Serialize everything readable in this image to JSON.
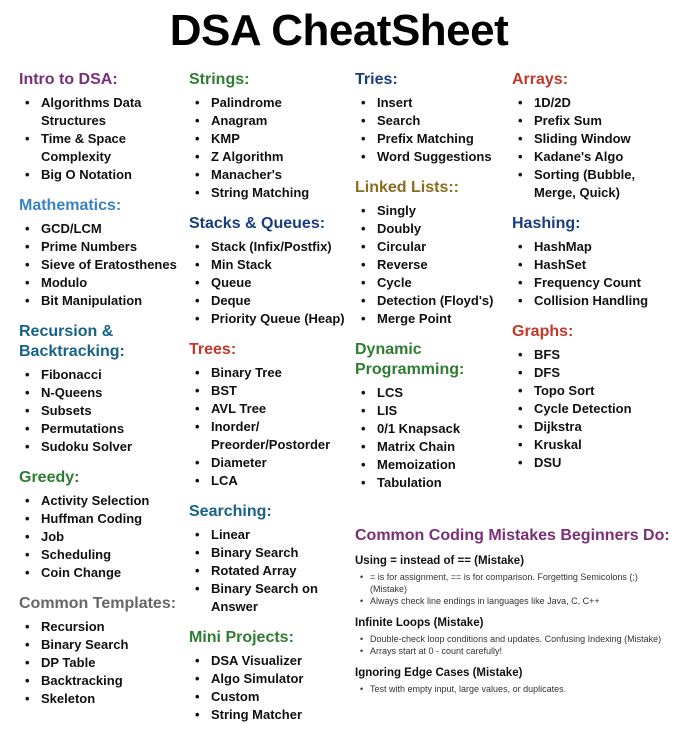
{
  "title": "DSA CheatSheet",
  "columns": [
    {
      "sections": [
        {
          "title": "Intro to DSA:",
          "color": "#7a2e78",
          "items": [
            "Algorithms Data Structures",
            "Time & Space Complexity",
            "Big O Notation"
          ]
        },
        {
          "title": "Mathematics:",
          "color": "#3b82c4",
          "items": [
            "GCD/LCM",
            "Prime Numbers",
            "Sieve of Eratosthenes",
            "Modulo",
            "Bit Manipulation"
          ]
        },
        {
          "title": "Recursion & Backtracking:",
          "color": "#17628a",
          "items": [
            "Fibonacci",
            "N-Queens",
            "Subsets",
            "Permutations",
            "Sudoku Solver"
          ]
        },
        {
          "title": "Greedy:",
          "color": "#2e7d32",
          "items": [
            "Activity Selection",
            "Huffman Coding",
            "Job",
            "Scheduling",
            "Coin Change"
          ]
        },
        {
          "title": "Common Templates:",
          "color": "#666666",
          "items": [
            "Recursion",
            "Binary Search",
            "DP Table",
            "Backtracking",
            "Skeleton"
          ]
        }
      ]
    },
    {
      "sections": [
        {
          "title": "Strings:",
          "color": "#2e7d32",
          "items": [
            "Palindrome",
            "Anagram",
            "KMP",
            "Z Algorithm",
            "Manacher's",
            "String Matching"
          ]
        },
        {
          "title": "Stacks & Queues:",
          "color": "#1a3d80",
          "items": [
            "Stack (Infix/Postfix)",
            "Min Stack",
            "Queue",
            "Deque",
            "Priority Queue (Heap)"
          ]
        },
        {
          "title": "Trees:",
          "color": "#c0392b",
          "items": [
            "Binary Tree",
            "BST",
            "AVL Tree",
            "Inorder/ Preorder/Postorder",
            "Diameter",
            "LCA"
          ]
        },
        {
          "title": "Searching:",
          "color": "#17628a",
          "items": [
            "Linear",
            "Binary Search",
            "Rotated Array",
            "Binary Search on Answer"
          ]
        },
        {
          "title": "Mini Projects:",
          "color": "#2e7d32",
          "items": [
            "DSA Visualizer",
            "Algo Simulator",
            "Custom",
            "String Matcher"
          ]
        }
      ]
    },
    {
      "sections": [
        {
          "title": "Tries:",
          "color": "#1a3d80",
          "items": [
            "Insert",
            "Search",
            "Prefix Matching",
            "Word Suggestions"
          ]
        },
        {
          "title": "Linked Lists::",
          "color": "#8a6d1e",
          "items": [
            "Singly",
            "Doubly",
            "Circular",
            "Reverse",
            "Cycle",
            "Detection (Floyd's)",
            "Merge Point"
          ]
        },
        {
          "title": "Dynamic Programming:",
          "color": "#2e7d32",
          "items": [
            "LCS",
            "LIS",
            "0/1 Knapsack",
            "Matrix Chain",
            "Memoization",
            "Tabulation"
          ]
        }
      ]
    },
    {
      "sections": [
        {
          "title": "Arrays:",
          "color": "#c0392b",
          "items": [
            "1D/2D",
            "Prefix Sum",
            "Sliding Window",
            "Kadane's Algo",
            "Sorting (Bubble, Merge, Quick)"
          ]
        },
        {
          "title": "Hashing:",
          "color": "#1a3d80",
          "items": [
            "HashMap",
            "HashSet",
            "Frequency Count",
            "Collision Handling"
          ]
        },
        {
          "title": "Graphs:",
          "color": "#c0392b",
          "items": [
            "BFS",
            "DFS",
            "Topo Sort",
            "Cycle Detection",
            "Dijkstra",
            "Kruskal",
            "DSU"
          ]
        }
      ]
    }
  ],
  "mistakes": {
    "title": "Common Coding Mistakes Beginners Do:",
    "groups": [
      {
        "heading": "Using = instead of == (Mistake)",
        "points": [
          "= is for assignment, == is for comparison. Forgetting Semicolons (;) (Mistake)",
          "Always check line endings in languages like Java, C, C++"
        ]
      },
      {
        "heading": "Infinite Loops (Mistake)",
        "points": [
          "Double-check loop conditions and updates. Confusing Indexing (Mistake)",
          "Arrays start at 0 - count carefully!"
        ]
      },
      {
        "heading": "Ignoring Edge Cases (Mistake)",
        "points": [
          "Test with empty input, large values, or duplicates."
        ]
      }
    ]
  }
}
